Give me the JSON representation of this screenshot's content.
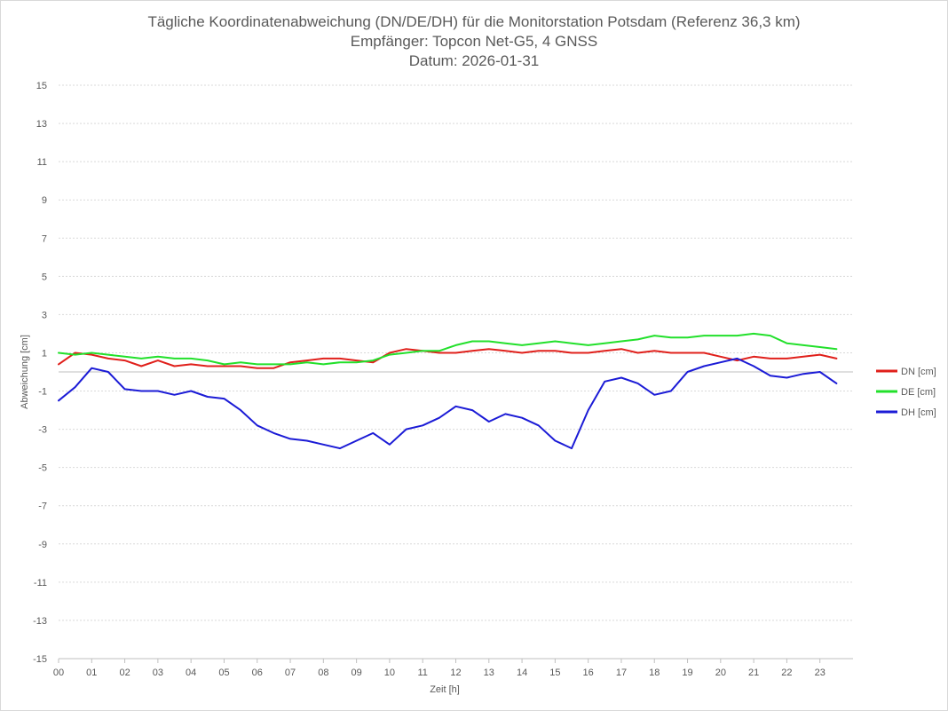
{
  "chart_data": {
    "type": "line",
    "title": "Tägliche Koordinatenabweichung (DN/DE/DH) für die Monitorstation Potsdam (Referenz 36,3 km)",
    "subtitle": "Empfänger: Topcon Net-G5, 4 GNSS",
    "subtitle2": "Datum: 2026-01-31",
    "xlabel": "Zeit [h]",
    "ylabel": "Abweichung [cm]",
    "xlim": [
      0,
      24
    ],
    "ylim": [
      -15,
      15
    ],
    "x_ticks": [
      "00",
      "01",
      "02",
      "03",
      "04",
      "05",
      "06",
      "07",
      "08",
      "09",
      "10",
      "11",
      "12",
      "13",
      "14",
      "15",
      "16",
      "17",
      "18",
      "19",
      "20",
      "21",
      "22",
      "23"
    ],
    "y_ticks": [
      "15",
      "13",
      "11",
      "9",
      "7",
      "5",
      "3",
      "1",
      "-1",
      "-3",
      "-5",
      "-7",
      "-9",
      "-11",
      "-13",
      "-15"
    ],
    "grid": true,
    "legend_position": "right",
    "x": [
      0.0,
      0.5,
      1.0,
      1.5,
      2.0,
      2.5,
      3.0,
      3.5,
      4.0,
      4.5,
      5.0,
      5.5,
      6.0,
      6.5,
      7.0,
      7.5,
      8.0,
      8.5,
      9.0,
      9.5,
      10.0,
      10.5,
      11.0,
      11.5,
      12.0,
      12.5,
      13.0,
      13.5,
      14.0,
      14.5,
      15.0,
      15.5,
      16.0,
      16.5,
      17.0,
      17.5,
      18.0,
      18.5,
      19.0,
      19.5,
      20.0,
      20.5,
      21.0,
      21.5,
      22.0,
      22.5,
      23.0,
      23.5
    ],
    "series": [
      {
        "name": "DN [cm]",
        "color": "#e0201b",
        "values": [
          0.4,
          1.0,
          0.9,
          0.7,
          0.6,
          0.3,
          0.6,
          0.3,
          0.4,
          0.3,
          0.3,
          0.3,
          0.2,
          0.2,
          0.5,
          0.6,
          0.7,
          0.7,
          0.6,
          0.5,
          1.0,
          1.2,
          1.1,
          1.0,
          1.0,
          1.1,
          1.2,
          1.1,
          1.0,
          1.1,
          1.1,
          1.0,
          1.0,
          1.1,
          1.2,
          1.0,
          1.1,
          1.0,
          1.0,
          1.0,
          0.8,
          0.6,
          0.8,
          0.7,
          0.7,
          0.8,
          0.9,
          0.7
        ]
      },
      {
        "name": "DE [cm]",
        "color": "#22e02b",
        "values": [
          1.0,
          0.9,
          1.0,
          0.9,
          0.8,
          0.7,
          0.8,
          0.7,
          0.7,
          0.6,
          0.4,
          0.5,
          0.4,
          0.4,
          0.4,
          0.5,
          0.4,
          0.5,
          0.5,
          0.6,
          0.9,
          1.0,
          1.1,
          1.1,
          1.4,
          1.6,
          1.6,
          1.5,
          1.4,
          1.5,
          1.6,
          1.5,
          1.4,
          1.5,
          1.6,
          1.7,
          1.9,
          1.8,
          1.8,
          1.9,
          1.9,
          1.9,
          2.0,
          1.9,
          1.5,
          1.4,
          1.3,
          1.2
        ]
      },
      {
        "name": "DH [cm]",
        "color": "#1b1bd6",
        "values": [
          -1.5,
          -0.8,
          0.2,
          0.0,
          -0.9,
          -1.0,
          -1.0,
          -1.2,
          -1.0,
          -1.3,
          -1.4,
          -2.0,
          -2.8,
          -3.2,
          -3.5,
          -3.6,
          -3.8,
          -4.0,
          -3.6,
          -3.2,
          -3.8,
          -3.0,
          -2.8,
          -2.4,
          -1.8,
          -2.0,
          -2.6,
          -2.2,
          -2.4,
          -2.8,
          -3.6,
          -4.0,
          -2.0,
          -0.5,
          -0.3,
          -0.6,
          -1.2,
          -1.0,
          0.0,
          0.3,
          0.5,
          0.7,
          0.3,
          -0.2,
          -0.3,
          -0.1,
          0.0,
          -0.6
        ]
      }
    ]
  }
}
